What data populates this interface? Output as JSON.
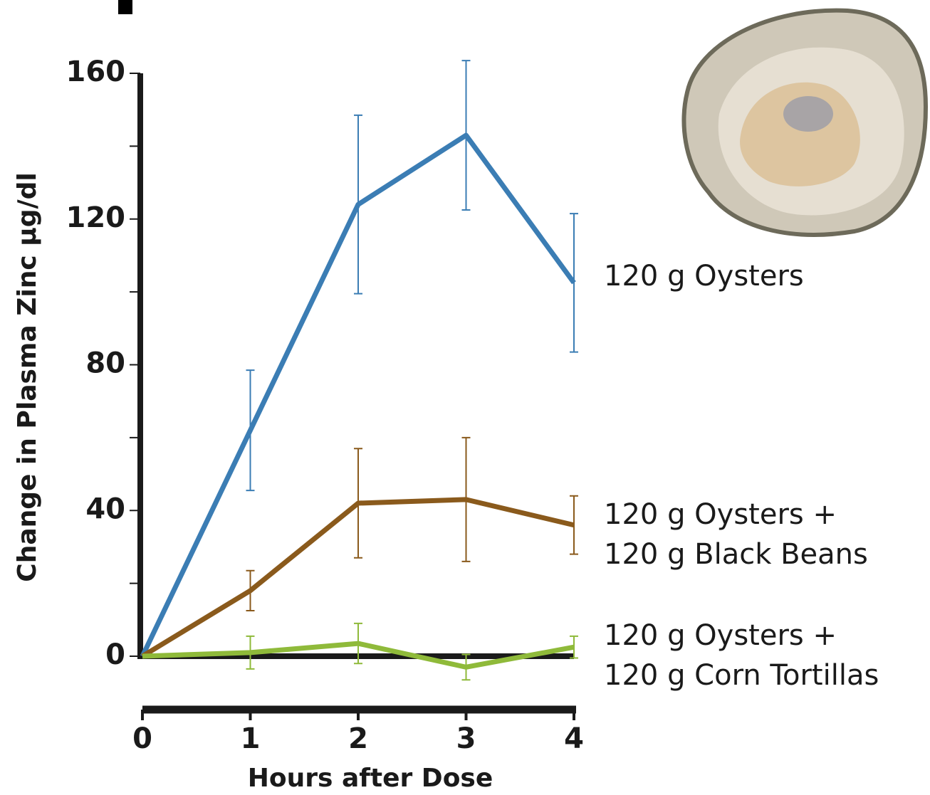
{
  "chart_data": {
    "type": "line",
    "x_label": "Hours after Dose",
    "y_label": "Change in Plasma Zinc µg/dl",
    "x": [
      0,
      1,
      2,
      3,
      4
    ],
    "xlim": [
      0,
      4
    ],
    "xticks": [
      0,
      1,
      2,
      3,
      4
    ],
    "ylim": [
      0,
      160
    ],
    "yticks": [
      0,
      40,
      80,
      120,
      160
    ],
    "yminor_ticks": [
      20,
      60,
      100,
      140
    ],
    "series": [
      {
        "name": "120 g Oysters",
        "color": "#3b7db4",
        "values": [
          0,
          62,
          124,
          143,
          102.5
        ],
        "errors": [
          null,
          16.5,
          24.5,
          20.5,
          19
        ]
      },
      {
        "name": "120 g Oysters +\n120 g Black Beans",
        "color": "#8a5a1c",
        "values": [
          0,
          18,
          42,
          43,
          36
        ],
        "errors": [
          null,
          5.5,
          15,
          17,
          8
        ]
      },
      {
        "name": "120 g Oysters +\n120 g Corn Tortillas",
        "color": "#8fba3a",
        "values": [
          0,
          1,
          3.5,
          -3,
          2.5
        ],
        "errors": [
          null,
          4.5,
          5.5,
          3.5,
          3
        ]
      }
    ]
  }
}
